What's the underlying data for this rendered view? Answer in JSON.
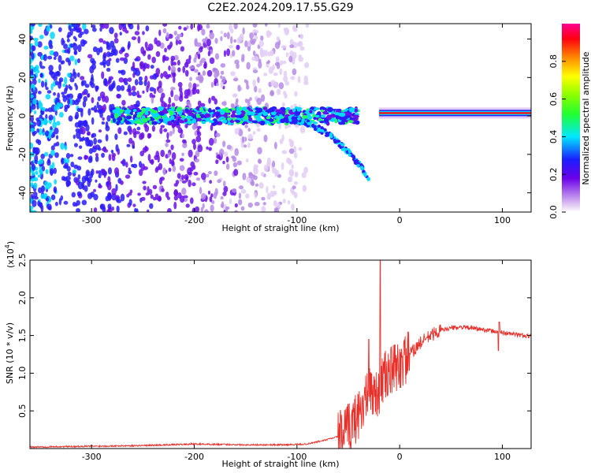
{
  "figure": {
    "title": "C2E2.2024.209.17.55.G29"
  },
  "chart_data": [
    {
      "type": "heatmap",
      "xlabel": "Height of straight line (km)",
      "ylabel": "Frequency (Hz)",
      "xlim": [
        -360,
        128
      ],
      "ylim": [
        -50,
        48
      ],
      "x_ticks": [
        -300,
        -200,
        -100,
        0,
        100
      ],
      "x_tick_labels": [
        "-300",
        "-200",
        "-100",
        "0",
        "100"
      ],
      "y_ticks": [
        -40,
        -20,
        0,
        20,
        40
      ],
      "y_tick_labels": [
        "-40",
        "-20",
        "0",
        "20",
        "40"
      ],
      "colorscale": "rainbow",
      "colorbar": {
        "label": "Normalized spectral amplitude",
        "range": [
          0,
          1
        ],
        "ticks": [
          0.0,
          0.2,
          0.4,
          0.6,
          0.8
        ],
        "tick_labels": [
          "0.0",
          "0.2",
          "0.4",
          "0.6",
          "0.8"
        ]
      },
      "features": {
        "noise_region_x": [
          -360,
          -90
        ],
        "main_band_center_hz": 0,
        "main_band_x": [
          -280,
          -40
        ],
        "strong_line_x": [
          -20,
          128
        ],
        "strong_line_freq_hz": 1.5,
        "diverging_tail_end": {
          "x": -30,
          "freq_hz": -32
        }
      },
      "grid": false
    },
    {
      "type": "line",
      "xlabel": "Height of straight line (km)",
      "ylabel": "SNR (10 * v/v)",
      "scale_label": "(x10",
      "scale_exponent": "4",
      "xlim": [
        -360,
        128
      ],
      "ylim": [
        0,
        2.5
      ],
      "x_ticks": [
        -300,
        -200,
        -100,
        0,
        100
      ],
      "x_tick_labels": [
        "-300",
        "-200",
        "-100",
        "0",
        "100"
      ],
      "y_ticks": [
        0.5,
        1.0,
        1.5,
        2.0,
        2.5
      ],
      "y_tick_labels": [
        "0.5",
        "1.0",
        "1.5",
        "2.0",
        "2.5"
      ],
      "series": [
        {
          "color": "#e8302a",
          "profile": {
            "x": [
              -360,
              -250,
              -200,
              -150,
              -110,
              -90,
              -70,
              -55,
              -45,
              -35,
              -28,
              -24,
              -20,
              -15,
              -10,
              0,
              10,
              20,
              30,
              40,
              50,
              60,
              70,
              80,
              90,
              95,
              100,
              110,
              120,
              128
            ],
            "y": [
              0.02,
              0.04,
              0.06,
              0.05,
              0.05,
              0.06,
              0.12,
              0.18,
              0.35,
              0.6,
              0.8,
              0.7,
              0.8,
              0.95,
              1.0,
              1.1,
              1.25,
              1.4,
              1.5,
              1.57,
              1.6,
              1.61,
              1.6,
              1.58,
              1.56,
              1.55,
              1.54,
              1.52,
              1.5,
              1.49
            ]
          },
          "spikes": [
            {
              "x": -30,
              "y": 1.45
            },
            {
              "x": -19,
              "y": 2.5
            },
            {
              "x": 97,
              "y": 1.68
            },
            {
              "x": 96,
              "y": 1.3
            }
          ]
        }
      ],
      "grid": false
    }
  ]
}
